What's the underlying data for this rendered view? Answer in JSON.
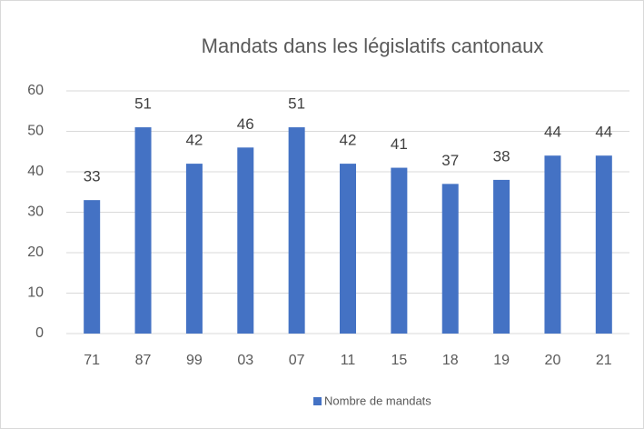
{
  "chart_data": {
    "type": "bar",
    "title": "Mandats dans les législatifs cantonaux",
    "categories": [
      "71",
      "87",
      "99",
      "03",
      "07",
      "11",
      "15",
      "18",
      "19",
      "20",
      "21"
    ],
    "series": [
      {
        "name": "Nombre de mandats",
        "color": "#4472c4",
        "values": [
          33,
          51,
          42,
          46,
          51,
          42,
          41,
          37,
          38,
          44,
          44
        ]
      }
    ],
    "ylim": [
      0,
      60
    ],
    "yticks": [
      0,
      10,
      20,
      30,
      40,
      50,
      60
    ],
    "grid": true,
    "legend": "bottom"
  }
}
